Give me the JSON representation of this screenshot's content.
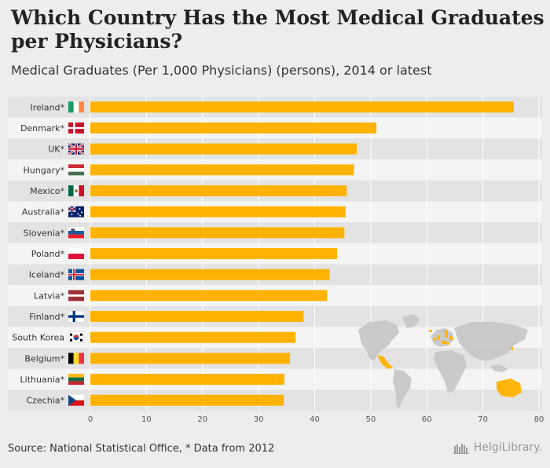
{
  "header": {
    "title": "Which Country Has the Most Medical Graduates per Physicians?",
    "subtitle": "Medical Graduates (Per 1,000 Physicians) (persons), 2014 or latest"
  },
  "chart_data": {
    "type": "bar",
    "orientation": "horizontal",
    "title": "Which Country Has the Most Medical Graduates per Physicians?",
    "ylabel": "",
    "xlabel": "",
    "xlim": [
      0,
      80
    ],
    "xticks": [
      0,
      10,
      20,
      30,
      40,
      50,
      60,
      70,
      80
    ],
    "bar_color": "#ffb300",
    "categories": [
      "Ireland*",
      "Denmark*",
      "UK*",
      "Hungary*",
      "Mexico*",
      "Australia*",
      "Slovenia*",
      "Poland*",
      "Iceland*",
      "Latvia*",
      "Finland*",
      "South Korea",
      "Belgium*",
      "Lithuania*",
      "Czechia*"
    ],
    "values": [
      75.5,
      51,
      47.5,
      47,
      45.7,
      45.5,
      45.3,
      44,
      42.7,
      42.2,
      38,
      36.6,
      35.6,
      34.6,
      34.5
    ],
    "flags": [
      "ireland-flag",
      "denmark-flag",
      "uk-flag",
      "hungary-flag",
      "mexico-flag",
      "australia-flag",
      "slovenia-flag",
      "poland-flag",
      "iceland-flag",
      "latvia-flag",
      "finland-flag",
      "south-korea-flag",
      "belgium-flag",
      "lithuania-flag",
      "czechia-flag"
    ]
  },
  "footer": {
    "source": "Source: National Statistical Office, * Data from 2012",
    "brand": "HelgiLibrary."
  },
  "colors": {
    "accent": "#ffb300",
    "map_land": "#c8c8c8",
    "map_highlight": "#ffb300"
  }
}
